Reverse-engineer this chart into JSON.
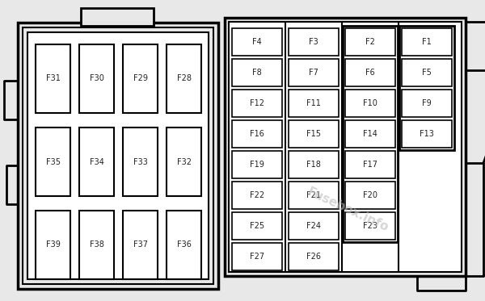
{
  "bg_color": "#e8e8e8",
  "panel_bg": "#e8e8e8",
  "white": "#ffffff",
  "black": "#000000",
  "text_color": "#222222",
  "watermark_color": "#bbbbbb",
  "watermark_text": "Fusebox.info",
  "fig_w": 6.0,
  "fig_h": 3.73,
  "dpi": 100,
  "left_rows": [
    [
      "F31",
      "F30",
      "F29",
      "F28"
    ],
    [
      "F35",
      "F34",
      "F33",
      "F32"
    ],
    [
      "F39",
      "F38",
      "F37",
      "F36"
    ]
  ],
  "right_col1": [
    "F4",
    "F8",
    "F12",
    "F16",
    "F19",
    "F22",
    "F25",
    "F27"
  ],
  "right_col2": [
    "F3",
    "F7",
    "F11",
    "F15",
    "F18",
    "F21",
    "F24",
    "F26"
  ],
  "right_col3": [
    "F2",
    "F6",
    "F10",
    "F14",
    "F17",
    "F20",
    "F23"
  ],
  "right_col4": [
    "F1",
    "F5",
    "F9",
    "F13"
  ]
}
